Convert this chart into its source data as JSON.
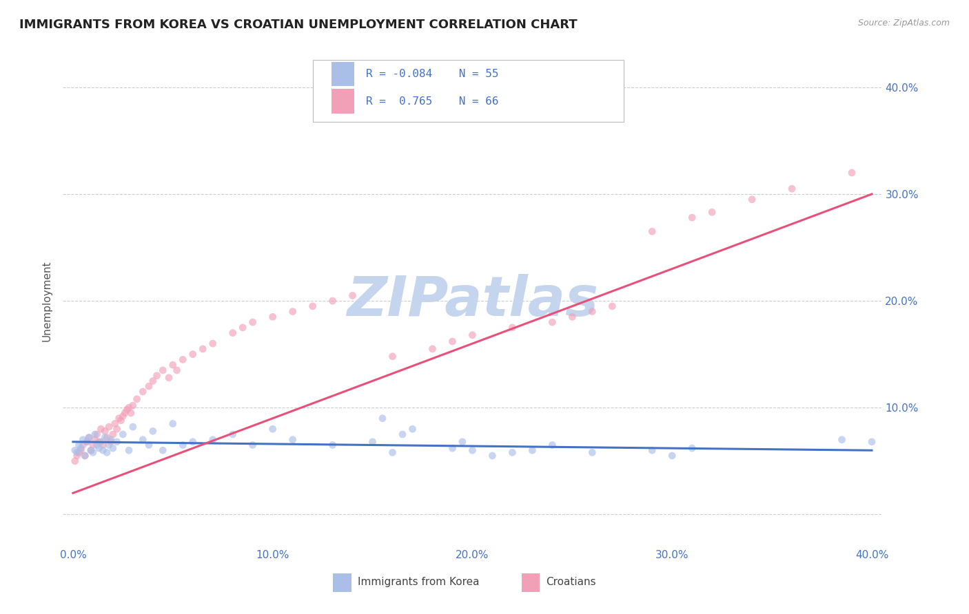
{
  "title": "IMMIGRANTS FROM KOREA VS CROATIAN UNEMPLOYMENT CORRELATION CHART",
  "source": "Source: ZipAtlas.com",
  "ylabel": "Unemployment",
  "xlim": [
    -0.005,
    0.405
  ],
  "ylim": [
    -0.03,
    0.43
  ],
  "yticks": [
    0.0,
    0.1,
    0.2,
    0.3,
    0.4
  ],
  "xticks": [
    0.0,
    0.1,
    0.2,
    0.3,
    0.4
  ],
  "ytick_labels": [
    "",
    "10.0%",
    "20.0%",
    "30.0%",
    "40.0%"
  ],
  "xtick_labels": [
    "0.0%",
    "10.0%",
    "20.0%",
    "30.0%",
    "40.0%"
  ],
  "legend_entries": [
    {
      "label": "Immigrants from Korea",
      "color": "#aabfe8",
      "R": -0.084,
      "N": 55
    },
    {
      "label": "Croatians",
      "color": "#f2a0b8",
      "R": 0.765,
      "N": 66
    }
  ],
  "blue_scatter_x": [
    0.001,
    0.002,
    0.003,
    0.004,
    0.005,
    0.006,
    0.007,
    0.008,
    0.009,
    0.01,
    0.011,
    0.012,
    0.013,
    0.014,
    0.015,
    0.016,
    0.017,
    0.018,
    0.019,
    0.02,
    0.022,
    0.025,
    0.028,
    0.03,
    0.035,
    0.038,
    0.04,
    0.045,
    0.05,
    0.055,
    0.06,
    0.07,
    0.08,
    0.09,
    0.1,
    0.11,
    0.13,
    0.15,
    0.155,
    0.16,
    0.165,
    0.17,
    0.19,
    0.195,
    0.2,
    0.21,
    0.22,
    0.23,
    0.24,
    0.26,
    0.29,
    0.3,
    0.31,
    0.385,
    0.4
  ],
  "blue_scatter_y": [
    0.06,
    0.058,
    0.065,
    0.062,
    0.07,
    0.055,
    0.068,
    0.072,
    0.06,
    0.058,
    0.075,
    0.065,
    0.062,
    0.068,
    0.06,
    0.072,
    0.058,
    0.065,
    0.07,
    0.062,
    0.068,
    0.075,
    0.06,
    0.082,
    0.07,
    0.065,
    0.078,
    0.06,
    0.085,
    0.065,
    0.068,
    0.07,
    0.075,
    0.065,
    0.08,
    0.07,
    0.065,
    0.068,
    0.09,
    0.058,
    0.075,
    0.08,
    0.062,
    0.068,
    0.06,
    0.055,
    0.058,
    0.06,
    0.065,
    0.058,
    0.06,
    0.055,
    0.062,
    0.07,
    0.068
  ],
  "pink_scatter_x": [
    0.001,
    0.002,
    0.003,
    0.004,
    0.005,
    0.006,
    0.007,
    0.008,
    0.009,
    0.01,
    0.011,
    0.012,
    0.013,
    0.014,
    0.015,
    0.016,
    0.017,
    0.018,
    0.019,
    0.02,
    0.021,
    0.022,
    0.023,
    0.024,
    0.025,
    0.026,
    0.027,
    0.028,
    0.029,
    0.03,
    0.032,
    0.035,
    0.038,
    0.04,
    0.042,
    0.045,
    0.048,
    0.05,
    0.052,
    0.055,
    0.06,
    0.065,
    0.07,
    0.08,
    0.085,
    0.09,
    0.1,
    0.11,
    0.12,
    0.13,
    0.14,
    0.16,
    0.18,
    0.19,
    0.2,
    0.22,
    0.24,
    0.25,
    0.26,
    0.27,
    0.29,
    0.31,
    0.32,
    0.34,
    0.36,
    0.39
  ],
  "pink_scatter_y": [
    0.05,
    0.055,
    0.058,
    0.06,
    0.065,
    0.055,
    0.068,
    0.072,
    0.06,
    0.065,
    0.07,
    0.075,
    0.068,
    0.08,
    0.065,
    0.078,
    0.072,
    0.082,
    0.068,
    0.075,
    0.085,
    0.08,
    0.09,
    0.088,
    0.092,
    0.095,
    0.098,
    0.1,
    0.095,
    0.102,
    0.108,
    0.115,
    0.12,
    0.125,
    0.13,
    0.135,
    0.128,
    0.14,
    0.135,
    0.145,
    0.15,
    0.155,
    0.16,
    0.17,
    0.175,
    0.18,
    0.185,
    0.19,
    0.195,
    0.2,
    0.205,
    0.148,
    0.155,
    0.162,
    0.168,
    0.175,
    0.18,
    0.185,
    0.19,
    0.195,
    0.265,
    0.278,
    0.283,
    0.295,
    0.305,
    0.32
  ],
  "blue_trend_x": [
    0.0,
    0.4
  ],
  "blue_trend_y": [
    0.068,
    0.06
  ],
  "pink_trend_x": [
    0.0,
    0.4
  ],
  "pink_trend_y": [
    0.02,
    0.3
  ],
  "blue_line_color": "#4472c4",
  "pink_line_color": "#e8507a",
  "blue_dot_color": "#aabfe8",
  "pink_dot_color": "#f2a0b8",
  "watermark_text": "ZIPatlas",
  "watermark_color_zip": "#c5d5ee",
  "watermark_color_atlas": "#c5d5ee",
  "background_color": "#ffffff",
  "grid_color": "#cccccc",
  "title_color": "#222222",
  "axis_label_color": "#555555",
  "tick_label_color": "#4472c4",
  "title_fontsize": 13,
  "axis_label_fontsize": 11,
  "tick_fontsize": 11,
  "dot_size": 60,
  "dot_alpha": 0.65,
  "line_width": 2.2
}
